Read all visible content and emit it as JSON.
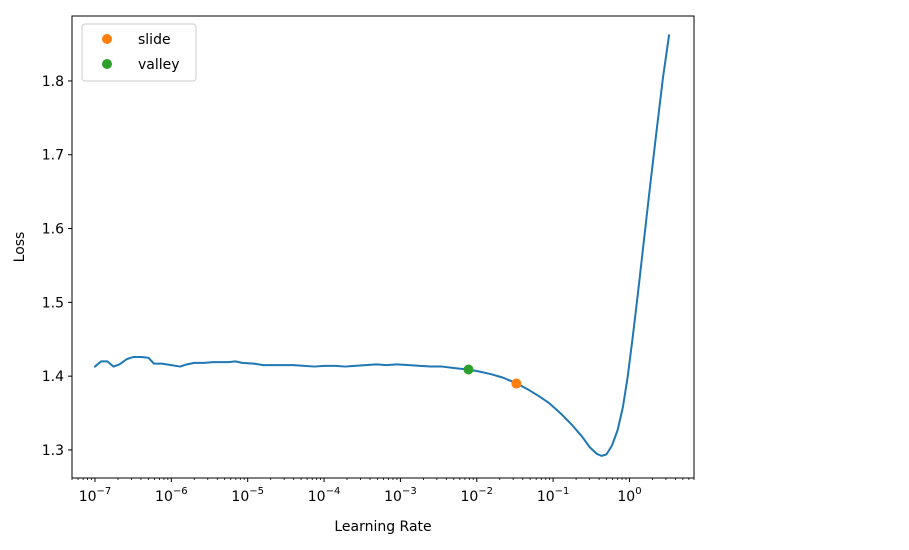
{
  "chart_data": {
    "type": "line",
    "title": "",
    "xlabel": "Learning Rate",
    "ylabel": "Loss",
    "xscale": "log",
    "xlim": [
      5e-08,
      7.0
    ],
    "ylim": [
      1.262,
      1.888
    ],
    "grid": false,
    "legend_placement": "top-left",
    "x_ticks": [
      {
        "value": 1e-07,
        "base": "10",
        "exp": "−7"
      },
      {
        "value": 1e-06,
        "base": "10",
        "exp": "−6"
      },
      {
        "value": 1e-05,
        "base": "10",
        "exp": "−5"
      },
      {
        "value": 0.0001,
        "base": "10",
        "exp": "−4"
      },
      {
        "value": 0.001,
        "base": "10",
        "exp": "−3"
      },
      {
        "value": 0.01,
        "base": "10",
        "exp": "−2"
      },
      {
        "value": 0.1,
        "base": "10",
        "exp": "−1"
      },
      {
        "value": 1,
        "base": "10",
        "exp": "0"
      }
    ],
    "y_ticks": [
      {
        "value": 1.3,
        "label": "1.3"
      },
      {
        "value": 1.4,
        "label": "1.4"
      },
      {
        "value": 1.5,
        "label": "1.5"
      },
      {
        "value": 1.6,
        "label": "1.6"
      },
      {
        "value": 1.7,
        "label": "1.7"
      },
      {
        "value": 1.8,
        "label": "1.8"
      }
    ],
    "series": [
      {
        "color": "#1f77b4",
        "points": [
          [
            1e-07,
            1.413
          ],
          [
            1.2e-07,
            1.42
          ],
          [
            1.45e-07,
            1.42
          ],
          [
            1.75e-07,
            1.413
          ],
          [
            2.1e-07,
            1.416
          ],
          [
            2.6e-07,
            1.423
          ],
          [
            3.2e-07,
            1.426
          ],
          [
            4e-07,
            1.426
          ],
          [
            5e-07,
            1.425
          ],
          [
            5.9e-07,
            1.417
          ],
          [
            7.5e-07,
            1.417
          ],
          [
            1e-06,
            1.415
          ],
          [
            1.3e-06,
            1.413
          ],
          [
            1.6e-06,
            1.416
          ],
          [
            2e-06,
            1.418
          ],
          [
            2.7e-06,
            1.418
          ],
          [
            3.5e-06,
            1.419
          ],
          [
            4.6e-06,
            1.419
          ],
          [
            5.6e-06,
            1.419
          ],
          [
            6.9e-06,
            1.42
          ],
          [
            8.5e-06,
            1.418
          ],
          [
            1.2e-05,
            1.417
          ],
          [
            1.6e-05,
            1.415
          ],
          [
            2.2e-05,
            1.415
          ],
          [
            3e-05,
            1.415
          ],
          [
            4e-05,
            1.415
          ],
          [
            5.5e-05,
            1.414
          ],
          [
            7.5e-05,
            1.413
          ],
          [
            0.0001,
            1.414
          ],
          [
            0.00014,
            1.414
          ],
          [
            0.00019,
            1.413
          ],
          [
            0.00025,
            1.414
          ],
          [
            0.00035,
            1.415
          ],
          [
            0.00048,
            1.416
          ],
          [
            0.00066,
            1.415
          ],
          [
            0.0009,
            1.416
          ],
          [
            0.0013,
            1.415
          ],
          [
            0.0018,
            1.414
          ],
          [
            0.0025,
            1.413
          ],
          [
            0.0035,
            1.413
          ],
          [
            0.005,
            1.411
          ],
          [
            0.0075,
            1.409
          ],
          [
            0.01,
            1.407
          ],
          [
            0.015,
            1.403
          ],
          [
            0.022,
            1.398
          ],
          [
            0.032,
            1.391
          ],
          [
            0.045,
            1.383
          ],
          [
            0.065,
            1.373
          ],
          [
            0.09,
            1.363
          ],
          [
            0.13,
            1.348
          ],
          [
            0.18,
            1.333
          ],
          [
            0.24,
            1.318
          ],
          [
            0.3,
            1.304
          ],
          [
            0.37,
            1.295
          ],
          [
            0.43,
            1.292
          ],
          [
            0.5,
            1.294
          ],
          [
            0.59,
            1.306
          ],
          [
            0.7,
            1.327
          ],
          [
            0.82,
            1.358
          ],
          [
            0.95,
            1.4
          ],
          [
            1.1,
            1.452
          ],
          [
            1.3,
            1.515
          ],
          [
            1.55,
            1.585
          ],
          [
            1.85,
            1.655
          ],
          [
            2.25,
            1.73
          ],
          [
            2.75,
            1.805
          ],
          [
            3.3,
            1.862
          ]
        ]
      }
    ],
    "markers": [
      {
        "name": "slide",
        "x": 0.033,
        "y": 1.39,
        "color": "#ff7f0e"
      },
      {
        "name": "valley",
        "x": 0.0078,
        "y": 1.409,
        "color": "#2ca02c"
      }
    ]
  }
}
